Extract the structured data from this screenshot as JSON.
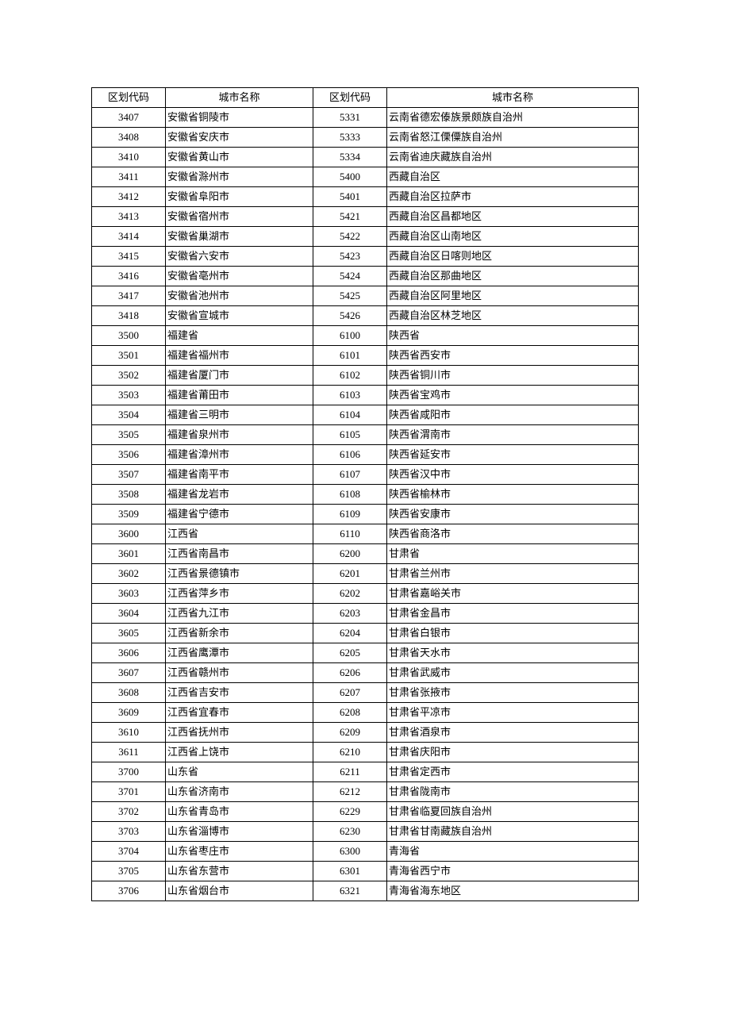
{
  "table": {
    "columns": [
      "区划代码",
      "城市名称",
      "区划代码",
      "城市名称"
    ],
    "column_widths_pct": [
      13.5,
      27,
      13.5,
      46
    ],
    "font_size_pt": 10,
    "border_color": "#000000",
    "background_color": "#ffffff",
    "text_color": "#000000",
    "rows": [
      [
        "3407",
        "安徽省铜陵市",
        "5331",
        "云南省德宏傣族景颇族自治州"
      ],
      [
        "3408",
        "安徽省安庆市",
        "5333",
        "云南省怒江傈僳族自治州"
      ],
      [
        "3410",
        "安徽省黄山市",
        "5334",
        "云南省迪庆藏族自治州"
      ],
      [
        "3411",
        "安徽省滁州市",
        "5400",
        "西藏自治区"
      ],
      [
        "3412",
        "安徽省阜阳市",
        "5401",
        "西藏自治区拉萨市"
      ],
      [
        "3413",
        "安徽省宿州市",
        "5421",
        "西藏自治区昌都地区"
      ],
      [
        "3414",
        "安徽省巢湖市",
        "5422",
        "西藏自治区山南地区"
      ],
      [
        "3415",
        "安徽省六安市",
        "5423",
        "西藏自治区日喀则地区"
      ],
      [
        "3416",
        "安徽省亳州市",
        "5424",
        "西藏自治区那曲地区"
      ],
      [
        "3417",
        "安徽省池州市",
        "5425",
        "西藏自治区阿里地区"
      ],
      [
        "3418",
        "安徽省宣城市",
        "5426",
        "西藏自治区林芝地区"
      ],
      [
        "3500",
        "福建省",
        "6100",
        "陕西省"
      ],
      [
        "3501",
        "福建省福州市",
        "6101",
        "陕西省西安市"
      ],
      [
        "3502",
        "福建省厦门市",
        "6102",
        "陕西省铜川市"
      ],
      [
        "3503",
        "福建省莆田市",
        "6103",
        "陕西省宝鸡市"
      ],
      [
        "3504",
        "福建省三明市",
        "6104",
        "陕西省咸阳市"
      ],
      [
        "3505",
        "福建省泉州市",
        "6105",
        "陕西省渭南市"
      ],
      [
        "3506",
        "福建省漳州市",
        "6106",
        "陕西省延安市"
      ],
      [
        "3507",
        "福建省南平市",
        "6107",
        "陕西省汉中市"
      ],
      [
        "3508",
        "福建省龙岩市",
        "6108",
        "陕西省榆林市"
      ],
      [
        "3509",
        "福建省宁德市",
        "6109",
        "陕西省安康市"
      ],
      [
        "3600",
        "江西省",
        "6110",
        "陕西省商洛市"
      ],
      [
        "3601",
        "江西省南昌市",
        "6200",
        "甘肃省"
      ],
      [
        "3602",
        "江西省景德镇市",
        "6201",
        "甘肃省兰州市"
      ],
      [
        "3603",
        "江西省萍乡市",
        "6202",
        "甘肃省嘉峪关市"
      ],
      [
        "3604",
        "江西省九江市",
        "6203",
        "甘肃省金昌市"
      ],
      [
        "3605",
        "江西省新余市",
        "6204",
        "甘肃省白银市"
      ],
      [
        "3606",
        "江西省鹰潭市",
        "6205",
        "甘肃省天水市"
      ],
      [
        "3607",
        "江西省赣州市",
        "6206",
        "甘肃省武威市"
      ],
      [
        "3608",
        "江西省吉安市",
        "6207",
        "甘肃省张掖市"
      ],
      [
        "3609",
        "江西省宜春市",
        "6208",
        "甘肃省平凉市"
      ],
      [
        "3610",
        "江西省抚州市",
        "6209",
        "甘肃省酒泉市"
      ],
      [
        "3611",
        "江西省上饶市",
        "6210",
        "甘肃省庆阳市"
      ],
      [
        "3700",
        "山东省",
        "6211",
        "甘肃省定西市"
      ],
      [
        "3701",
        "山东省济南市",
        "6212",
        "甘肃省陇南市"
      ],
      [
        "3702",
        "山东省青岛市",
        "6229",
        "甘肃省临夏回族自治州"
      ],
      [
        "3703",
        "山东省淄博市",
        "6230",
        "甘肃省甘南藏族自治州"
      ],
      [
        "3704",
        "山东省枣庄市",
        "6300",
        "青海省"
      ],
      [
        "3705",
        "山东省东营市",
        "6301",
        "青海省西宁市"
      ],
      [
        "3706",
        "山东省烟台市",
        "6321",
        "青海省海东地区"
      ]
    ]
  }
}
